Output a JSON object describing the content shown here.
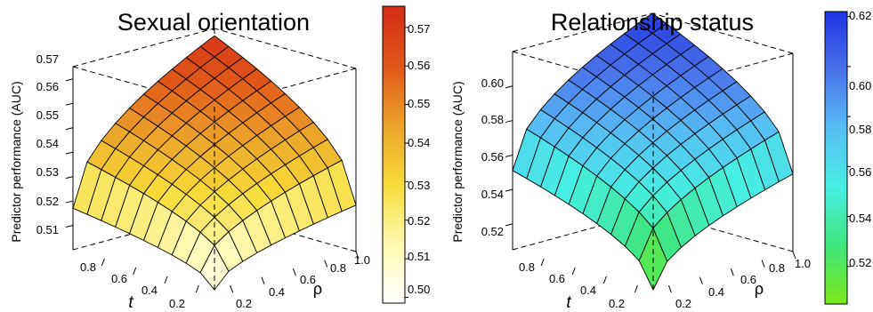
{
  "chart_data": [
    {
      "type": "surface3d",
      "title": "Sexual orientation",
      "zlabel": "Predictor performance (AUC)",
      "xlabel": "t",
      "ylabel": "ρ",
      "x_range": [
        0.1,
        1.0
      ],
      "y_range": [
        0.1,
        1.0
      ],
      "z_range": [
        0.5,
        0.575
      ],
      "grid_size": 10,
      "corner_values": {
        "t_low_rho_low": 0.5,
        "t_high_rho_low": 0.517,
        "t_low_rho_high": 0.519,
        "t_high_rho_high": 0.572
      },
      "z_ticks": [
        0.51,
        0.52,
        0.53,
        0.54,
        0.55,
        0.56,
        0.57
      ],
      "z_tick_labels": [
        "0.51",
        "0.52",
        "0.53",
        "0.54",
        "0.55",
        "0.56",
        "0.57"
      ],
      "t_ticks": [
        0.2,
        0.4,
        0.6,
        0.8
      ],
      "t_tick_labels": [
        "0.2",
        "0.4",
        "0.6",
        "0.8"
      ],
      "rho_ticks": [
        0.2,
        0.4,
        0.6,
        0.8,
        1.0
      ],
      "rho_tick_labels": [
        "0.2",
        "0.4",
        "0.6",
        "0.8",
        "1.0"
      ],
      "colorbar": {
        "min": 0.4985,
        "max": 0.5755,
        "colors": [
          "#ffffff",
          "#fff9b0",
          "#f6dc3a",
          "#eca32a",
          "#e0571a",
          "#d42d15"
        ],
        "ticks": [
          0.5,
          0.51,
          0.52,
          0.53,
          0.54,
          0.55,
          0.56,
          0.57
        ],
        "tick_labels": [
          "0.50",
          "0.51",
          "0.52",
          "0.53",
          "0.54",
          "0.55",
          "0.56",
          "0.57"
        ]
      }
    },
    {
      "type": "surface3d",
      "title": "Relationship status",
      "zlabel": "Predictor performance (AUC)",
      "xlabel": "t",
      "ylabel": "ρ",
      "x_range": [
        0.1,
        1.0
      ],
      "y_range": [
        0.1,
        1.0
      ],
      "z_range": [
        0.505,
        0.62
      ],
      "grid_size": 10,
      "corner_values": {
        "t_low_rho_low": 0.505,
        "t_high_rho_low": 0.551,
        "t_low_rho_high": 0.55,
        "t_high_rho_high": 0.62
      },
      "z_ticks": [
        0.52,
        0.54,
        0.56,
        0.58,
        0.6
      ],
      "z_tick_labels": [
        "0.52",
        "0.54",
        "0.56",
        "0.58",
        "0.60"
      ],
      "t_ticks": [
        0.2,
        0.4,
        0.6,
        0.8
      ],
      "t_tick_labels": [
        "0.2",
        "0.4",
        "0.6",
        "0.8"
      ],
      "rho_ticks": [
        0.2,
        0.4,
        0.6,
        0.8,
        1.0
      ],
      "rho_tick_labels": [
        "0.2",
        "0.4",
        "0.6",
        "0.8",
        "1.0"
      ],
      "colorbar": {
        "min": 0.505,
        "max": 0.622,
        "colors": [
          "#7ee81a",
          "#3fe67a",
          "#47eee2",
          "#58bff4",
          "#4a72ea",
          "#2035e0"
        ],
        "ticks": [
          0.52,
          0.54,
          0.56,
          0.58,
          0.6,
          0.62
        ],
        "tick_labels": [
          "0.52",
          "0.54",
          "0.56",
          "0.58",
          "0.60",
          "0.62"
        ]
      }
    }
  ]
}
